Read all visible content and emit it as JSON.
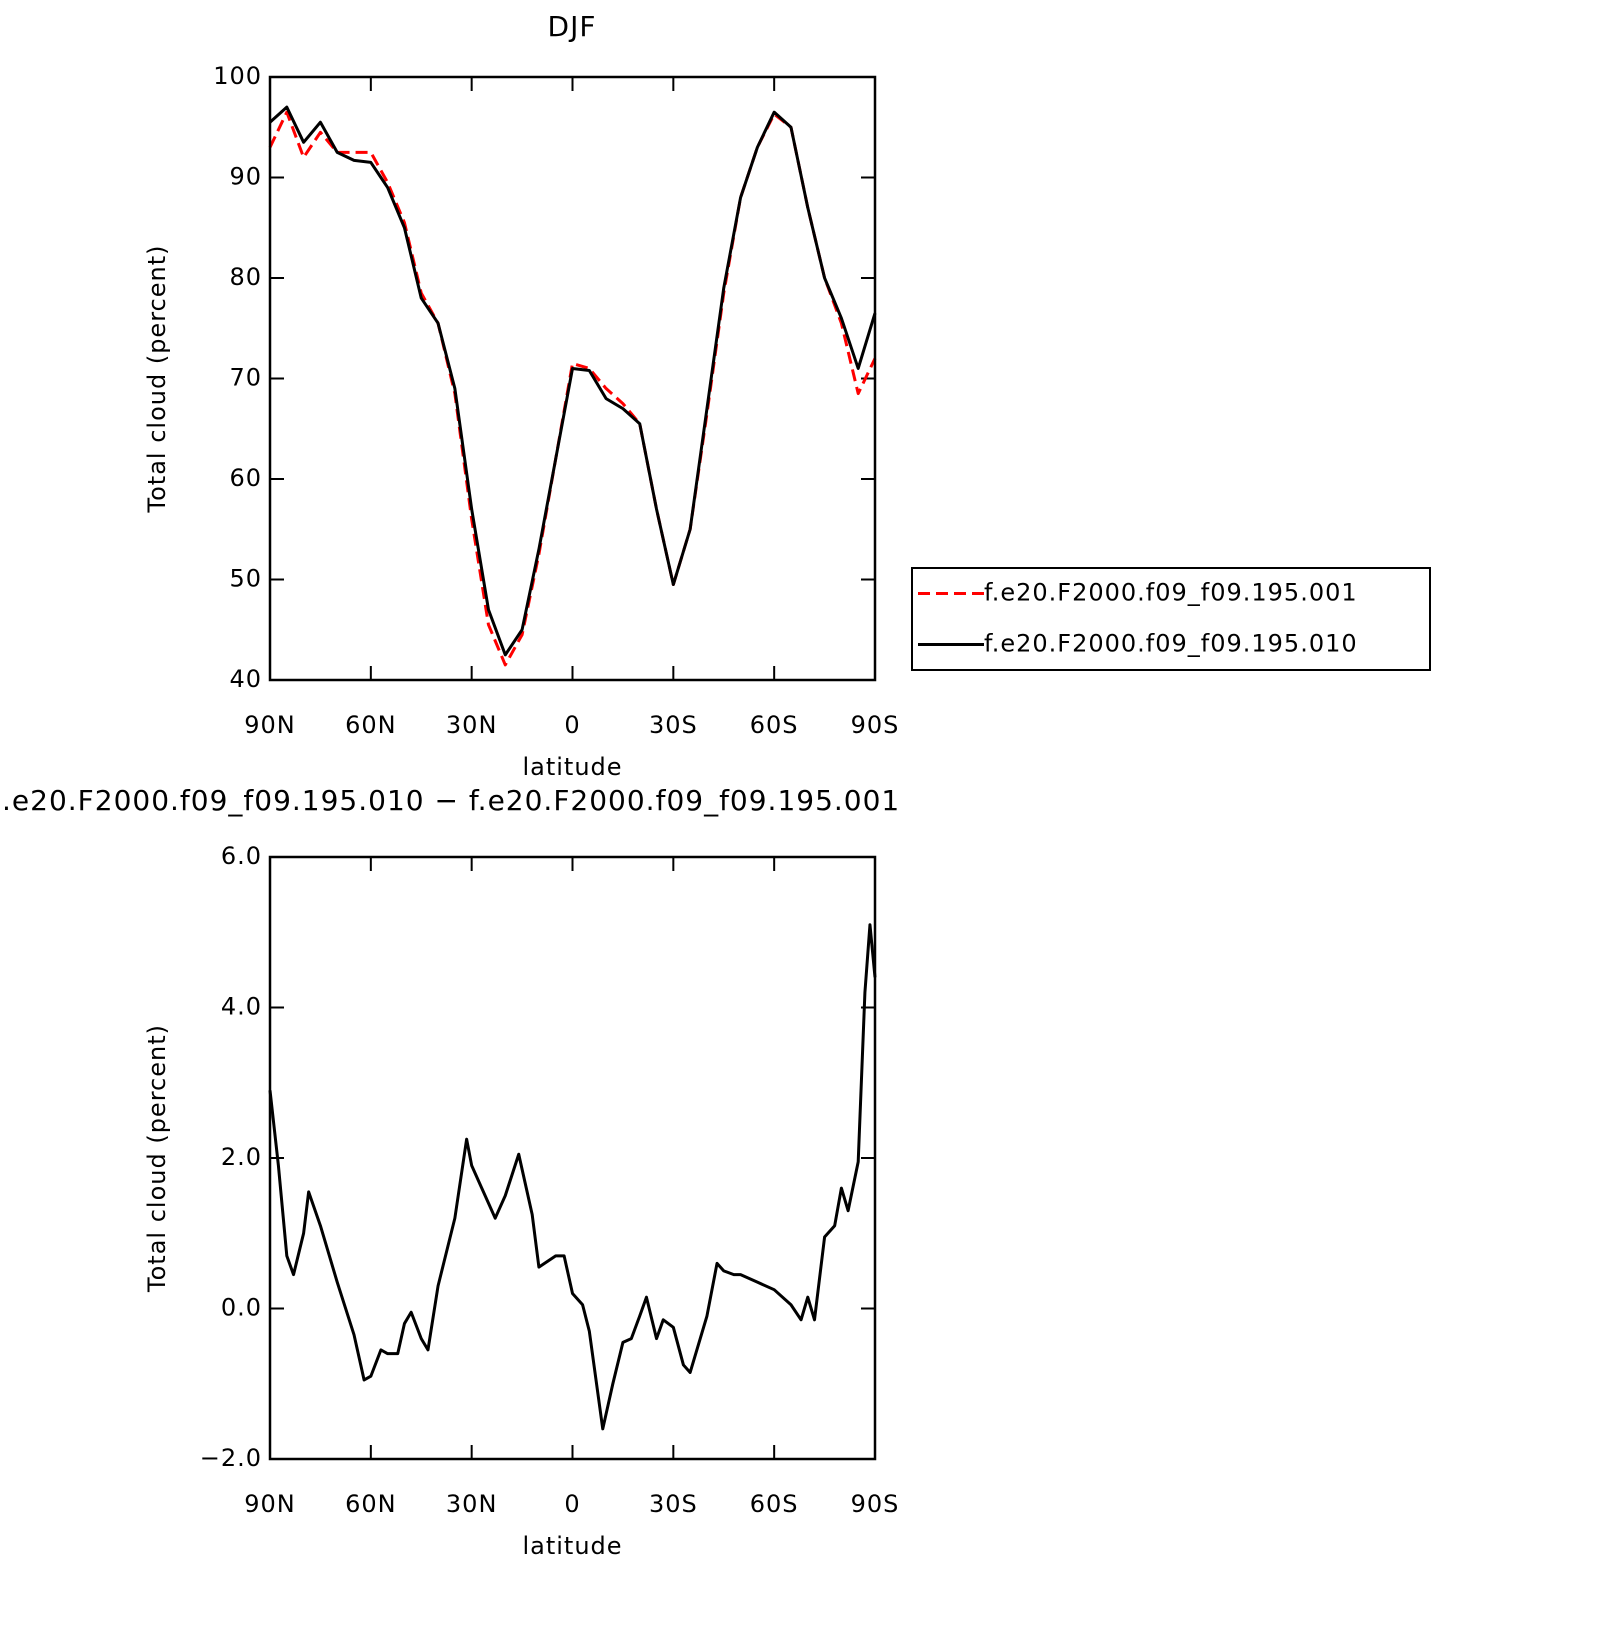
{
  "chart_data": [
    {
      "type": "line",
      "title": "DJF",
      "xlabel": "latitude",
      "ylabel": "Total cloud (percent)",
      "x": [
        90,
        85,
        80,
        75,
        70,
        65,
        60,
        55,
        50,
        45,
        40,
        35,
        30,
        25,
        20,
        15,
        10,
        5,
        0,
        -5,
        -10,
        -15,
        -20,
        -25,
        -30,
        -35,
        -40,
        -45,
        -50,
        -55,
        -60,
        -65,
        -70,
        -75,
        -80,
        -85,
        -90
      ],
      "series": [
        {
          "name": "f.e20.F2000.f09_f09.195.001",
          "color": "#ff0000",
          "dash": true,
          "values": [
            93,
            96.5,
            92,
            94.5,
            92.5,
            92.5,
            92.5,
            89.5,
            85.5,
            78.5,
            75.5,
            68.5,
            56,
            45.5,
            41.5,
            44.5,
            52.5,
            62,
            71.5,
            71,
            69,
            67.5,
            65.5,
            57,
            49.5,
            55,
            66.5,
            78.5,
            88,
            93,
            96.3,
            95,
            87,
            80,
            75.5,
            68.5,
            72
          ]
        },
        {
          "name": "f.e20.F2000.f09_f09.195.010",
          "color": "#000000",
          "dash": false,
          "values": [
            95.5,
            97,
            93.5,
            95.5,
            92.5,
            91.7,
            91.5,
            89,
            85,
            78,
            75.5,
            69,
            57,
            47,
            42.5,
            45,
            53,
            62,
            71,
            70.8,
            68,
            67,
            65.5,
            57,
            49.5,
            55,
            67,
            79,
            88,
            93,
            96.5,
            95,
            87,
            80,
            76,
            71,
            76.5
          ]
        }
      ],
      "xlim": [
        90,
        -90
      ],
      "xticks": [
        {
          "value": 90,
          "label": "90N"
        },
        {
          "value": 60,
          "label": "60N"
        },
        {
          "value": 30,
          "label": "30N"
        },
        0,
        {
          "value": -30,
          "label": "30S"
        },
        {
          "value": -60,
          "label": "60S"
        },
        {
          "value": -90,
          "label": "90S"
        }
      ],
      "ylim": [
        40,
        100
      ],
      "yticks": [
        40,
        50,
        60,
        70,
        80,
        90,
        100
      ],
      "legend": "right"
    },
    {
      "type": "line",
      "title": ".e20.F2000.f09_f09.195.010 − f.e20.F2000.f09_f09.195.001",
      "xlabel": "latitude",
      "ylabel": "Total cloud (percent)",
      "x": [
        90,
        87.5,
        85,
        83,
        80,
        78.5,
        75,
        70,
        65,
        62,
        60,
        57,
        55,
        52,
        50,
        48,
        45,
        43,
        40,
        35,
        31.5,
        30,
        27,
        25,
        23,
        20,
        16,
        12,
        10,
        5,
        2.5,
        0,
        -3,
        -5,
        -9,
        -12,
        -15,
        -17.5,
        -20,
        -22,
        -25,
        -27,
        -30,
        -33,
        -35,
        -40,
        -43,
        -45,
        -48,
        -50,
        -55,
        -60,
        -65,
        -68,
        -70,
        -72,
        -75,
        -78,
        -80,
        -82,
        -85,
        -87,
        -88.5,
        -90
      ],
      "series": [
        {
          "color": "#000000",
          "dash": false,
          "values": [
            2.9,
            1.9,
            0.7,
            0.45,
            1.0,
            1.55,
            1.1,
            0.35,
            -0.35,
            -0.95,
            -0.9,
            -0.55,
            -0.6,
            -0.6,
            -0.2,
            -0.05,
            -0.4,
            -0.55,
            0.3,
            1.2,
            2.25,
            1.9,
            1.6,
            1.4,
            1.2,
            1.5,
            2.05,
            1.25,
            0.55,
            0.7,
            0.7,
            0.2,
            0.05,
            -0.3,
            -1.6,
            -1.0,
            -0.45,
            -0.4,
            -0.1,
            0.15,
            -0.4,
            -0.15,
            -0.25,
            -0.75,
            -0.85,
            -0.1,
            0.6,
            0.5,
            0.45,
            0.45,
            0.35,
            0.25,
            0.05,
            -0.15,
            0.15,
            -0.15,
            0.95,
            1.1,
            1.6,
            1.3,
            1.95,
            4.2,
            5.1,
            4.4
          ]
        }
      ],
      "xlim": [
        90,
        -90
      ],
      "xticks": [
        {
          "value": 90,
          "label": "90N"
        },
        {
          "value": 60,
          "label": "60N"
        },
        {
          "value": 30,
          "label": "30N"
        },
        0,
        {
          "value": -30,
          "label": "30S"
        },
        {
          "value": -60,
          "label": "60S"
        },
        {
          "value": -90,
          "label": "90S"
        }
      ],
      "ylim": [
        -2,
        6
      ],
      "yticks": [
        {
          "value": -2,
          "label": "−2.0"
        },
        {
          "value": 0,
          "label": "0.0"
        },
        {
          "value": 2,
          "label": "2.0"
        },
        {
          "value": 4,
          "label": "4.0"
        },
        {
          "value": 6,
          "label": "6.0"
        }
      ]
    }
  ]
}
